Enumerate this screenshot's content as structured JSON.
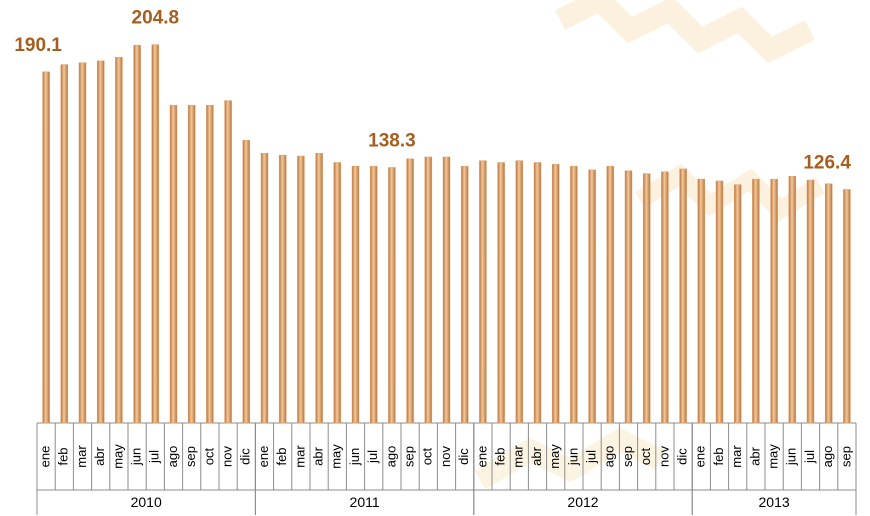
{
  "chart_data": {
    "type": "bar",
    "categories": [
      "ene",
      "feb",
      "mar",
      "abr",
      "may",
      "jun",
      "jul",
      "ago",
      "sep",
      "oct",
      "nov",
      "dic",
      "ene",
      "feb",
      "mar",
      "abr",
      "may",
      "jun",
      "jul",
      "ago",
      "sep",
      "oct",
      "nov",
      "dic",
      "ene",
      "feb",
      "mar",
      "abr",
      "may",
      "jun",
      "jul",
      "ago",
      "sep",
      "oct",
      "nov",
      "dic",
      "ene",
      "feb",
      "mar",
      "abr",
      "may",
      "jun",
      "jul",
      "ago",
      "sep"
    ],
    "groups": [
      {
        "name": "2010",
        "size": 12
      },
      {
        "name": "2011",
        "size": 12
      },
      {
        "name": "2012",
        "size": 12
      },
      {
        "name": "2013",
        "size": 9
      }
    ],
    "values": [
      190.1,
      194,
      195,
      196,
      198,
      204.5,
      204.8,
      172,
      172,
      172,
      174.5,
      153,
      146,
      145,
      144.5,
      146,
      141,
      139,
      139,
      138.3,
      143,
      144,
      144,
      139,
      142,
      141,
      142,
      141,
      140,
      139,
      137,
      139,
      136.5,
      135,
      136,
      137.5,
      132,
      131,
      129,
      132,
      132,
      133.5,
      131.5,
      129.5,
      126.4
    ],
    "value_labels": [
      "190.1",
      null,
      null,
      null,
      null,
      null,
      "204.8",
      null,
      null,
      null,
      null,
      null,
      null,
      null,
      null,
      null,
      null,
      null,
      null,
      "138.3",
      null,
      null,
      null,
      null,
      null,
      null,
      null,
      null,
      null,
      null,
      null,
      null,
      null,
      null,
      null,
      null,
      null,
      null,
      null,
      null,
      null,
      null,
      null,
      null,
      "126.4"
    ],
    "color": "#dca26c",
    "ylim": [
      0,
      210
    ]
  }
}
